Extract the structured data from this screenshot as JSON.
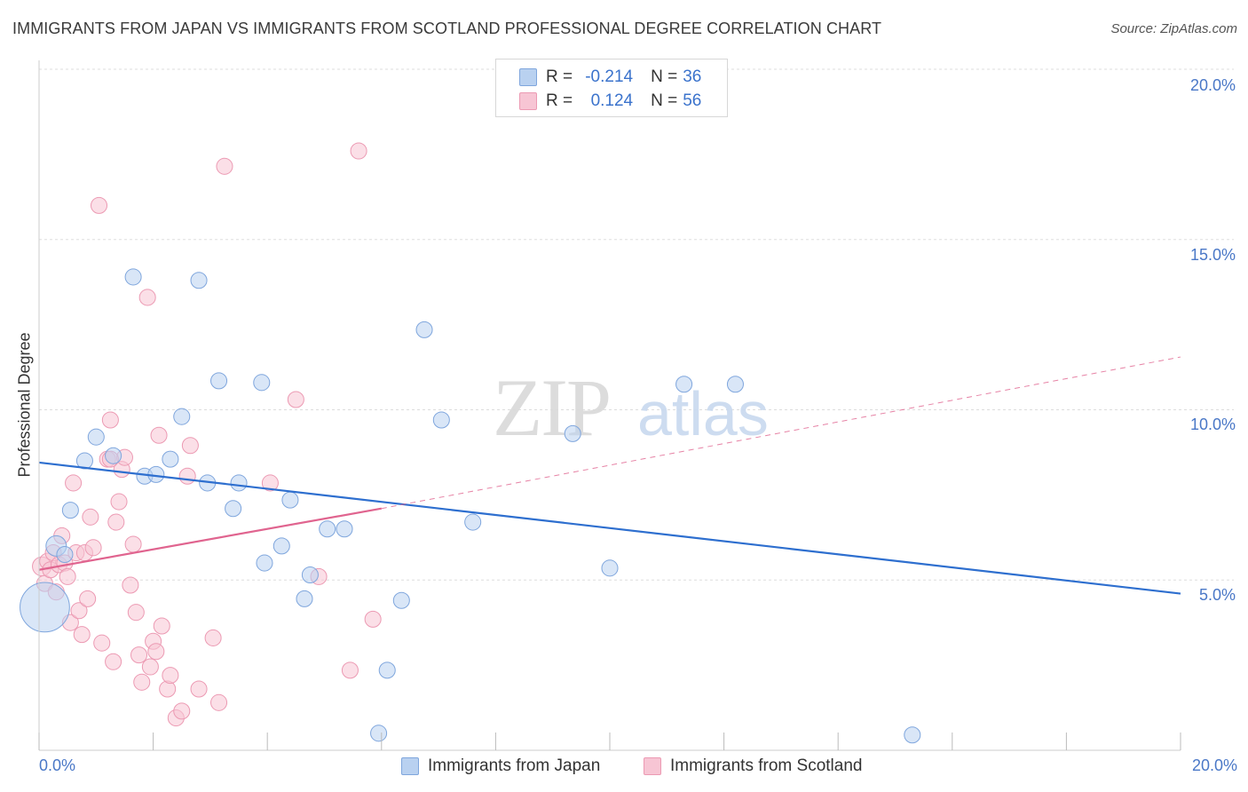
{
  "title": "IMMIGRANTS FROM JAPAN VS IMMIGRANTS FROM SCOTLAND PROFESSIONAL DEGREE CORRELATION CHART",
  "source": "Source: ZipAtlas.com",
  "watermark": {
    "zip": "ZIP",
    "atlas": "atlas"
  },
  "colors": {
    "japan_fill": "#b9d1f0",
    "japan_stroke": "#7fa6dd",
    "japan_line": "#2e6fcf",
    "scotland_fill": "#f7c5d4",
    "scotland_stroke": "#ec9ab3",
    "scotland_line": "#e0648f",
    "axis_text": "#4a78c7",
    "grid": "#dddddd"
  },
  "legend_top": {
    "rows": [
      {
        "r_label": "R =",
        "r_value": "-0.214",
        "n_label": "N =",
        "n_value": "36"
      },
      {
        "r_label": "R =",
        "r_value": "0.124",
        "n_label": "N =",
        "n_value": "56"
      }
    ]
  },
  "legend_bottom": {
    "japan": "Immigrants from Japan",
    "scotland": "Immigrants from Scotland"
  },
  "chart_data": {
    "type": "scatter",
    "title": "IMMIGRANTS FROM JAPAN VS IMMIGRANTS FROM SCOTLAND PROFESSIONAL DEGREE CORRELATION CHART",
    "xlabel": "",
    "ylabel": "Professional Degree",
    "xlim": [
      0,
      20
    ],
    "ylim": [
      0,
      20
    ],
    "x_tick_labels": [
      "0.0%",
      "20.0%"
    ],
    "y_ticks": [
      5,
      10,
      15,
      20
    ],
    "y_tick_labels": [
      "5.0%",
      "10.0%",
      "15.0%",
      "20.0%"
    ],
    "grid": true,
    "legend_position": "top-center",
    "series": [
      {
        "name": "Immigrants from Japan",
        "R": -0.214,
        "N": 36,
        "trend": {
          "x": [
            0,
            20
          ],
          "y": [
            8.45,
            4.6
          ],
          "dashed_to": null
        },
        "points": [
          [
            0.1,
            4.2,
            34
          ],
          [
            0.3,
            6.0,
            14
          ],
          [
            0.45,
            5.75,
            11
          ],
          [
            0.55,
            7.05,
            11
          ],
          [
            0.8,
            8.5,
            11
          ],
          [
            1.0,
            9.2,
            11
          ],
          [
            1.3,
            8.65,
            11
          ],
          [
            1.65,
            13.9,
            11
          ],
          [
            1.85,
            8.05,
            11
          ],
          [
            2.05,
            8.1,
            11
          ],
          [
            2.3,
            8.55,
            11
          ],
          [
            2.5,
            9.8,
            11
          ],
          [
            2.8,
            13.8,
            11
          ],
          [
            2.95,
            7.85,
            11
          ],
          [
            3.15,
            10.85,
            11
          ],
          [
            3.4,
            7.1,
            11
          ],
          [
            3.5,
            7.85,
            11
          ],
          [
            3.9,
            10.8,
            11
          ],
          [
            3.95,
            5.5,
            11
          ],
          [
            4.25,
            6.0,
            11
          ],
          [
            4.4,
            7.35,
            11
          ],
          [
            4.65,
            4.45,
            11
          ],
          [
            4.75,
            5.15,
            11
          ],
          [
            5.05,
            6.5,
            11
          ],
          [
            5.35,
            6.5,
            11
          ],
          [
            5.95,
            0.5,
            11
          ],
          [
            6.1,
            2.35,
            11
          ],
          [
            6.35,
            4.4,
            11
          ],
          [
            6.75,
            12.35,
            11
          ],
          [
            7.05,
            9.7,
            11
          ],
          [
            7.6,
            6.7,
            11
          ],
          [
            9.35,
            9.3,
            11
          ],
          [
            10.0,
            5.35,
            11
          ],
          [
            11.3,
            10.75,
            11
          ],
          [
            12.2,
            10.75,
            11
          ],
          [
            15.3,
            0.45,
            11
          ]
        ]
      },
      {
        "name": "Immigrants from Scotland",
        "R": 0.124,
        "N": 56,
        "trend": {
          "x": [
            0,
            6.0
          ],
          "y": [
            5.3,
            7.1
          ],
          "dashed_to": [
            20,
            11.55
          ]
        },
        "points": [
          [
            0.05,
            5.4,
            13
          ],
          [
            0.1,
            4.9,
            11
          ],
          [
            0.15,
            5.55,
            11
          ],
          [
            0.2,
            5.3,
            11
          ],
          [
            0.25,
            5.8,
            11
          ],
          [
            0.3,
            4.65,
            11
          ],
          [
            0.35,
            5.45,
            11
          ],
          [
            0.4,
            6.3,
            11
          ],
          [
            0.45,
            5.5,
            11
          ],
          [
            0.5,
            5.1,
            11
          ],
          [
            0.55,
            3.75,
            11
          ],
          [
            0.6,
            7.85,
            11
          ],
          [
            0.65,
            5.8,
            11
          ],
          [
            0.7,
            4.1,
            11
          ],
          [
            0.75,
            3.4,
            11
          ],
          [
            0.8,
            5.8,
            11
          ],
          [
            0.85,
            4.45,
            11
          ],
          [
            0.9,
            6.85,
            11
          ],
          [
            0.95,
            5.95,
            11
          ],
          [
            1.05,
            16.0,
            11
          ],
          [
            1.1,
            3.15,
            11
          ],
          [
            1.2,
            8.55,
            11
          ],
          [
            1.25,
            9.7,
            11
          ],
          [
            1.3,
            2.6,
            11
          ],
          [
            1.35,
            6.7,
            11
          ],
          [
            1.4,
            7.3,
            11
          ],
          [
            1.45,
            8.25,
            11
          ],
          [
            1.5,
            8.6,
            11
          ],
          [
            1.6,
            4.85,
            11
          ],
          [
            1.65,
            6.05,
            11
          ],
          [
            1.7,
            4.05,
            11
          ],
          [
            1.75,
            2.8,
            11
          ],
          [
            1.8,
            2.0,
            11
          ],
          [
            1.9,
            13.3,
            11
          ],
          [
            1.95,
            2.45,
            11
          ],
          [
            2.0,
            3.2,
            11
          ],
          [
            2.05,
            2.9,
            11
          ],
          [
            2.1,
            9.25,
            11
          ],
          [
            2.15,
            3.65,
            11
          ],
          [
            2.25,
            1.8,
            11
          ],
          [
            2.3,
            2.2,
            11
          ],
          [
            2.4,
            0.95,
            11
          ],
          [
            2.5,
            1.15,
            11
          ],
          [
            2.6,
            8.05,
            11
          ],
          [
            2.65,
            8.95,
            11
          ],
          [
            2.8,
            1.8,
            11
          ],
          [
            3.05,
            3.3,
            11
          ],
          [
            3.15,
            1.4,
            11
          ],
          [
            3.25,
            17.15,
            11
          ],
          [
            4.05,
            7.85,
            11
          ],
          [
            4.5,
            10.3,
            11
          ],
          [
            4.9,
            5.1,
            11
          ],
          [
            5.45,
            2.35,
            11
          ],
          [
            5.6,
            17.6,
            11
          ],
          [
            5.85,
            3.85,
            11
          ],
          [
            1.25,
            8.55,
            11
          ]
        ]
      }
    ]
  }
}
